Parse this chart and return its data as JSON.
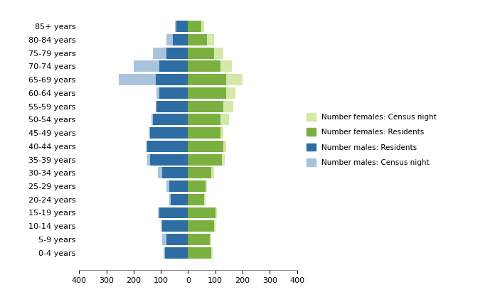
{
  "age_groups": [
    "0-4 years",
    "5-9 years",
    "10-14 years",
    "15-19 years",
    "20-24 years",
    "25-29 years",
    "30-34 years",
    "35-39 years",
    "40-44 years",
    "45-49 years",
    "50-54 years",
    "55-59 years",
    "60-64 years",
    "65-69 years",
    "70-74 years",
    "75-79 years",
    "80-84 years",
    "85+ years"
  ],
  "males_residents": [
    85,
    80,
    95,
    105,
    65,
    70,
    95,
    140,
    150,
    140,
    130,
    115,
    105,
    120,
    105,
    80,
    55,
    42
  ],
  "males_census_night": [
    90,
    95,
    100,
    110,
    70,
    80,
    110,
    150,
    155,
    145,
    135,
    120,
    115,
    255,
    200,
    130,
    80,
    48
  ],
  "females_residents": [
    85,
    80,
    95,
    100,
    60,
    65,
    85,
    125,
    130,
    120,
    120,
    130,
    140,
    140,
    120,
    95,
    70,
    48
  ],
  "females_census_night": [
    90,
    85,
    100,
    105,
    65,
    70,
    95,
    135,
    140,
    130,
    150,
    165,
    175,
    200,
    160,
    130,
    95,
    58
  ],
  "color_males_residents": "#2E6DA4",
  "color_males_census": "#A8C4DD",
  "color_females_residents": "#7BB040",
  "color_females_census": "#D4E8A8",
  "xlim": 400,
  "xticks": [
    -400,
    -300,
    -200,
    -100,
    0,
    100,
    200,
    300,
    400
  ],
  "xticklabels": [
    "400",
    "300",
    "200",
    "100",
    "0",
    "100",
    "200",
    "300",
    "400"
  ],
  "legend_labels": [
    "Number females: Census night",
    "Number females: Residents",
    "Number males: Residents",
    "Number males: Census night"
  ]
}
